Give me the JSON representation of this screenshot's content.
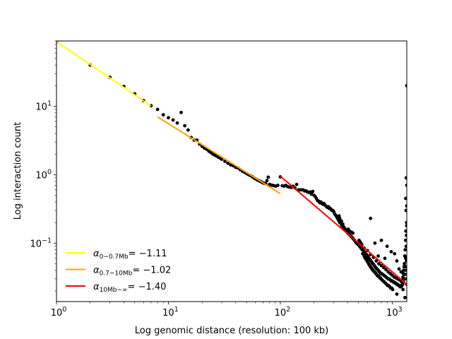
{
  "chart_data": {
    "type": "scatter",
    "title": "",
    "xlabel": "Log genomic distance (resolution: 100 kb)",
    "ylabel": "Log interaction count",
    "x_scale": "log",
    "y_scale": "log",
    "xlim": [
      1,
      1350
    ],
    "ylim": [
      0.014,
      90
    ],
    "grid": false,
    "legend_placement": "lower-left",
    "x_ticks": [
      {
        "base": "10",
        "exp": "0",
        "value": 1
      },
      {
        "base": "10",
        "exp": "1",
        "value": 10
      },
      {
        "base": "10",
        "exp": "2",
        "value": 100
      },
      {
        "base": "10",
        "exp": "3",
        "value": 1000
      }
    ],
    "y_ticks": [
      {
        "base": "10",
        "exp": "−1",
        "value": 0.1
      },
      {
        "base": "10",
        "exp": "0",
        "value": 1
      },
      {
        "base": "10",
        "exp": "1",
        "value": 10
      }
    ],
    "points_color": "#000000",
    "points": [
      [
        1,
        88
      ],
      [
        2,
        40
      ],
      [
        3,
        26.5
      ],
      [
        4,
        19.5
      ],
      [
        5,
        15.2
      ],
      [
        6,
        12.1
      ],
      [
        7,
        10.2
      ],
      [
        8,
        9.0
      ],
      [
        9,
        7.5
      ],
      [
        10,
        6.8
      ],
      [
        11,
        6.3
      ],
      [
        12,
        5.7
      ],
      [
        13,
        8.1
      ],
      [
        14,
        5.2
      ],
      [
        15,
        4.5
      ],
      [
        16,
        3.5
      ],
      [
        17,
        3.2
      ],
      [
        18,
        3.2
      ],
      [
        19,
        2.8
      ],
      [
        20,
        2.6
      ],
      [
        21,
        2.45
      ],
      [
        22,
        2.35
      ],
      [
        23,
        2.2
      ],
      [
        24,
        2.1
      ],
      [
        25,
        2.0
      ],
      [
        26,
        1.93
      ],
      [
        27,
        1.87
      ],
      [
        28,
        1.8
      ],
      [
        29,
        1.74
      ],
      [
        30,
        1.68
      ],
      [
        32,
        1.57
      ],
      [
        34,
        1.47
      ],
      [
        36,
        1.39
      ],
      [
        38,
        1.35
      ],
      [
        40,
        1.28
      ],
      [
        42,
        1.25
      ],
      [
        44,
        1.18
      ],
      [
        46,
        1.12
      ],
      [
        48,
        1.08
      ],
      [
        50,
        1.04
      ],
      [
        52,
        1.0
      ],
      [
        54,
        0.97
      ],
      [
        56,
        0.94
      ],
      [
        58,
        0.9
      ],
      [
        60,
        0.87
      ],
      [
        62,
        0.84
      ],
      [
        64,
        0.82
      ],
      [
        66,
        0.8
      ],
      [
        68,
        0.78
      ],
      [
        70,
        0.76
      ],
      [
        72,
        0.75
      ],
      [
        74,
        0.74
      ],
      [
        76,
        0.82
      ],
      [
        78,
        0.92
      ],
      [
        80,
        0.72
      ],
      [
        82,
        0.71
      ],
      [
        85,
        0.7
      ],
      [
        88,
        0.69
      ],
      [
        91,
        0.68
      ],
      [
        95,
        0.7
      ],
      [
        100,
        0.93
      ],
      [
        104,
        0.69
      ],
      [
        108,
        0.68
      ],
      [
        112,
        0.7
      ],
      [
        116,
        0.67
      ],
      [
        120,
        0.66
      ],
      [
        125,
        0.65
      ],
      [
        130,
        0.68
      ],
      [
        135,
        0.64
      ],
      [
        140,
        0.72
      ],
      [
        145,
        0.6
      ],
      [
        150,
        0.6
      ],
      [
        155,
        0.6
      ],
      [
        160,
        0.6
      ],
      [
        165,
        0.58
      ],
      [
        170,
        0.58
      ],
      [
        175,
        0.56
      ],
      [
        180,
        0.55
      ],
      [
        185,
        0.56
      ],
      [
        190,
        0.52
      ],
      [
        195,
        0.57
      ],
      [
        200,
        0.5
      ],
      [
        205,
        0.48
      ],
      [
        210,
        0.45
      ],
      [
        215,
        0.42
      ],
      [
        220,
        0.41
      ],
      [
        225,
        0.39
      ],
      [
        230,
        0.4
      ],
      [
        235,
        0.38
      ],
      [
        240,
        0.37
      ],
      [
        245,
        0.38
      ],
      [
        250,
        0.36
      ],
      [
        255,
        0.35
      ],
      [
        260,
        0.34
      ],
      [
        265,
        0.33
      ],
      [
        270,
        0.34
      ],
      [
        275,
        0.32
      ],
      [
        280,
        0.32
      ],
      [
        285,
        0.31
      ],
      [
        290,
        0.3
      ],
      [
        295,
        0.3
      ],
      [
        300,
        0.29
      ],
      [
        305,
        0.27
      ],
      [
        310,
        0.26
      ],
      [
        315,
        0.25
      ],
      [
        320,
        0.24
      ],
      [
        325,
        0.23
      ],
      [
        330,
        0.22
      ],
      [
        335,
        0.21
      ],
      [
        340,
        0.2
      ],
      [
        345,
        0.2
      ],
      [
        350,
        0.19
      ],
      [
        355,
        0.18
      ],
      [
        360,
        0.18
      ],
      [
        365,
        0.175
      ],
      [
        370,
        0.17
      ],
      [
        375,
        0.165
      ],
      [
        380,
        0.16
      ],
      [
        385,
        0.155
      ],
      [
        390,
        0.15
      ],
      [
        395,
        0.145
      ],
      [
        400,
        0.14
      ],
      [
        410,
        0.135
      ],
      [
        420,
        0.13
      ],
      [
        430,
        0.125
      ],
      [
        440,
        0.12
      ],
      [
        450,
        0.115
      ],
      [
        460,
        0.11
      ],
      [
        470,
        0.105
      ],
      [
        480,
        0.1
      ],
      [
        490,
        0.097
      ],
      [
        500,
        0.094
      ],
      [
        510,
        0.09
      ],
      [
        520,
        0.087
      ],
      [
        530,
        0.083
      ],
      [
        540,
        0.08
      ],
      [
        550,
        0.078
      ],
      [
        560,
        0.075
      ],
      [
        570,
        0.072
      ],
      [
        580,
        0.07
      ],
      [
        590,
        0.068
      ],
      [
        600,
        0.065
      ],
      [
        610,
        0.062
      ],
      [
        620,
        0.06
      ],
      [
        630,
        0.058
      ],
      [
        640,
        0.056
      ],
      [
        650,
        0.054
      ],
      [
        660,
        0.052
      ],
      [
        670,
        0.05
      ],
      [
        680,
        0.049
      ],
      [
        690,
        0.047
      ],
      [
        700,
        0.046
      ],
      [
        710,
        0.044
      ],
      [
        720,
        0.043
      ],
      [
        730,
        0.042
      ],
      [
        740,
        0.041
      ],
      [
        750,
        0.04
      ],
      [
        760,
        0.039
      ],
      [
        770,
        0.038
      ],
      [
        780,
        0.037
      ],
      [
        790,
        0.036
      ],
      [
        800,
        0.036
      ],
      [
        820,
        0.035
      ],
      [
        840,
        0.034
      ],
      [
        860,
        0.033
      ],
      [
        880,
        0.032
      ],
      [
        900,
        0.031
      ],
      [
        920,
        0.03
      ],
      [
        940,
        0.03
      ],
      [
        960,
        0.029
      ],
      [
        980,
        0.028
      ],
      [
        1000,
        0.028
      ],
      [
        1020,
        0.027
      ],
      [
        1040,
        0.027
      ],
      [
        1060,
        0.026
      ],
      [
        1080,
        0.026
      ],
      [
        1100,
        0.025
      ],
      [
        1120,
        0.025
      ],
      [
        1140,
        0.024
      ],
      [
        1160,
        0.024
      ],
      [
        1180,
        0.023
      ],
      [
        1200,
        0.023
      ],
      [
        1220,
        0.024
      ],
      [
        1240,
        0.025
      ],
      [
        1260,
        0.027
      ],
      [
        1280,
        0.03
      ],
      [
        1300,
        0.035
      ],
      [
        1310,
        0.045
      ],
      [
        1320,
        0.06
      ],
      [
        1330,
        0.09
      ],
      [
        1340,
        0.13
      ],
      [
        1345,
        0.2
      ],
      [
        1348,
        20
      ],
      [
        330,
        0.24
      ],
      [
        335,
        0.25
      ],
      [
        340,
        0.23
      ],
      [
        352,
        0.21
      ],
      [
        362,
        0.19
      ],
      [
        405,
        0.16
      ],
      [
        415,
        0.15
      ],
      [
        432,
        0.145
      ],
      [
        445,
        0.14
      ],
      [
        505,
        0.11
      ],
      [
        515,
        0.105
      ],
      [
        525,
        0.1
      ],
      [
        535,
        0.095
      ],
      [
        545,
        0.07
      ],
      [
        555,
        0.068
      ],
      [
        565,
        0.063
      ],
      [
        575,
        0.06
      ],
      [
        585,
        0.058
      ],
      [
        595,
        0.055
      ],
      [
        605,
        0.053
      ],
      [
        615,
        0.05
      ],
      [
        625,
        0.048
      ],
      [
        635,
        0.046
      ],
      [
        645,
        0.044
      ],
      [
        655,
        0.043
      ],
      [
        665,
        0.041
      ],
      [
        675,
        0.04
      ],
      [
        685,
        0.039
      ],
      [
        695,
        0.038
      ],
      [
        705,
        0.037
      ],
      [
        715,
        0.036
      ],
      [
        725,
        0.035
      ],
      [
        735,
        0.034
      ],
      [
        745,
        0.033
      ],
      [
        755,
        0.033
      ],
      [
        765,
        0.032
      ],
      [
        775,
        0.031
      ],
      [
        785,
        0.031
      ],
      [
        795,
        0.03
      ],
      [
        810,
        0.029
      ],
      [
        830,
        0.028
      ],
      [
        850,
        0.027
      ],
      [
        870,
        0.026
      ],
      [
        890,
        0.025
      ],
      [
        910,
        0.024
      ],
      [
        930,
        0.024
      ],
      [
        950,
        0.023
      ],
      [
        970,
        0.022
      ],
      [
        990,
        0.022
      ],
      [
        1010,
        0.021
      ],
      [
        560,
        0.085
      ],
      [
        600,
        0.078
      ],
      [
        640,
        0.068
      ],
      [
        680,
        0.062
      ],
      [
        720,
        0.055
      ],
      [
        760,
        0.05
      ],
      [
        800,
        0.047
      ],
      [
        840,
        0.044
      ],
      [
        880,
        0.041
      ],
      [
        920,
        0.038
      ],
      [
        960,
        0.036
      ],
      [
        1000,
        0.034
      ],
      [
        1040,
        0.032
      ],
      [
        1080,
        0.031
      ],
      [
        1120,
        0.03
      ],
      [
        1160,
        0.029
      ],
      [
        1200,
        0.028
      ],
      [
        1240,
        0.028
      ],
      [
        640,
        0.23
      ],
      [
        700,
        0.1
      ],
      [
        750,
        0.065
      ],
      [
        800,
        0.11
      ],
      [
        860,
        0.06
      ],
      [
        900,
        0.09
      ],
      [
        980,
        0.075
      ],
      [
        1050,
        0.07
      ],
      [
        1100,
        0.055
      ],
      [
        1150,
        0.042
      ],
      [
        1200,
        0.038
      ],
      [
        1250,
        0.021
      ],
      [
        1100,
        0.018
      ],
      [
        1300,
        0.016
      ],
      [
        1320,
        0.45
      ],
      [
        1330,
        0.3
      ],
      [
        1335,
        0.9
      ],
      [
        1325,
        0.15
      ],
      [
        1315,
        0.11
      ],
      [
        1305,
        0.08
      ],
      [
        1295,
        0.065
      ],
      [
        1285,
        0.05
      ],
      [
        1275,
        0.045
      ],
      [
        1265,
        0.04
      ],
      [
        1255,
        0.036
      ],
      [
        1245,
        0.032
      ],
      [
        1230,
        0.029
      ],
      [
        1215,
        0.027
      ],
      [
        1345,
        0.06
      ],
      [
        1348,
        0.025
      ],
      [
        1346,
        0.18
      ],
      [
        1347,
        0.35
      ],
      [
        1349,
        0.7
      ],
      [
        1340,
        0.055
      ],
      [
        1338,
        0.04
      ],
      [
        1342,
        0.03
      ]
    ],
    "fit_lines": [
      {
        "color": "#ffff00",
        "x": [
          1,
          7
        ],
        "y": [
          88,
          10.1
        ]
      },
      {
        "color": "#ffa500",
        "x": [
          8,
          100
        ],
        "y": [
          7.0,
          0.53
        ]
      },
      {
        "color": "#ff0000",
        "x": [
          100,
          1350
        ],
        "y": [
          0.95,
          0.025
        ]
      }
    ],
    "legend": [
      {
        "color": "#ffff00",
        "alpha": "α",
        "sub": "0−0.7Mb",
        "value": "= −1.11"
      },
      {
        "color": "#ffa500",
        "alpha": "α",
        "sub": "0.7−10Mb",
        "value": "= −1.02"
      },
      {
        "color": "#ff0000",
        "alpha": "α",
        "sub": "10Mb−∞",
        "value": "= −1.40"
      }
    ]
  }
}
